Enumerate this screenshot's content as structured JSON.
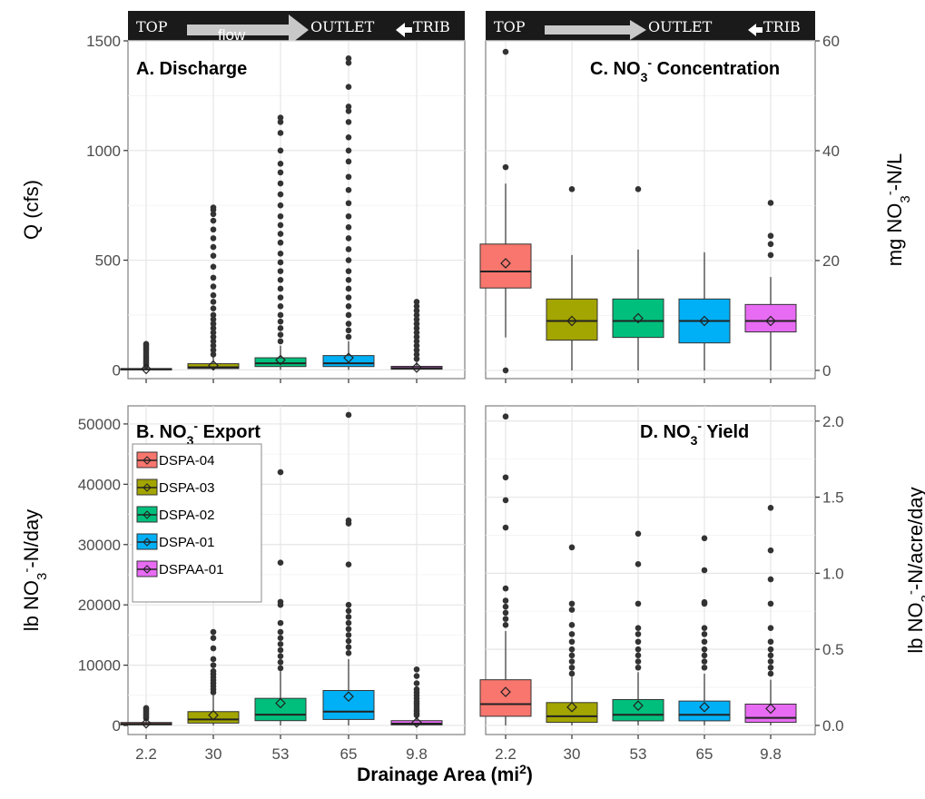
{
  "banner": {
    "top": "TOP",
    "flow": "flow",
    "outlet": "OUTLET",
    "trib": "TRIB"
  },
  "xlabel": {
    "text": "Drainage Area (mi",
    "sup": "2",
    "close": ")"
  },
  "colors": {
    "DSPA-04": "#f8766d",
    "DSPA-03": "#a3a500",
    "DSPA-02": "#00bf7d",
    "DSPA-01": "#00b0f6",
    "DSPAA-01": "#e76bf3"
  },
  "legend": [
    "DSPA-04",
    "DSPA-03",
    "DSPA-02",
    "DSPA-01",
    "DSPAA-01"
  ],
  "chart_data": [
    {
      "id": "A",
      "type": "box",
      "title": "A.   Discharge",
      "ylabel": "Q (cfs)",
      "yaxis_side": "left",
      "ylim": [
        -40,
        1500
      ],
      "yticks": [
        0,
        500,
        1000,
        1500
      ],
      "categories": [
        "2.2",
        "30",
        "53",
        "65",
        "9.8"
      ],
      "grid": true,
      "boxes": [
        {
          "site": "DSPA-04",
          "min": 0,
          "q1": 1,
          "median": 3,
          "q3": 6,
          "max": 14,
          "mean": 4,
          "outliers": [
            20,
            30,
            40,
            50,
            60,
            70,
            80,
            90,
            100,
            110,
            118
          ]
        },
        {
          "site": "DSPA-03",
          "min": 0,
          "q1": 6,
          "median": 12,
          "q3": 28,
          "max": 60,
          "mean": 20,
          "outliers": [
            70,
            90,
            110,
            130,
            150,
            170,
            190,
            210,
            230,
            250,
            280,
            310,
            340,
            380,
            420,
            470,
            520,
            560,
            600,
            640,
            680,
            710,
            730,
            740
          ]
        },
        {
          "site": "DSPA-02",
          "min": 0,
          "q1": 15,
          "median": 30,
          "q3": 55,
          "max": 110,
          "mean": 45,
          "outliers": [
            130,
            160,
            190,
            220,
            250,
            290,
            330,
            370,
            410,
            450,
            490,
            530,
            580,
            620,
            660,
            700,
            750,
            800,
            850,
            900,
            940,
            1000,
            1080,
            1130,
            1150
          ]
        },
        {
          "site": "DSPA-01",
          "min": 0,
          "q1": 15,
          "median": 30,
          "q3": 65,
          "max": 130,
          "mean": 55,
          "outliers": [
            150,
            180,
            210,
            250,
            290,
            330,
            370,
            410,
            450,
            500,
            550,
            600,
            650,
            700,
            760,
            820,
            880,
            950,
            1000,
            1060,
            1130,
            1180,
            1200,
            1290,
            1400,
            1420
          ]
        },
        {
          "site": "DSPAA-01",
          "min": 0,
          "q1": 3,
          "median": 8,
          "q3": 16,
          "max": 40,
          "mean": 10,
          "outliers": [
            50,
            70,
            90,
            110,
            130,
            150,
            170,
            190,
            210,
            230,
            250,
            270,
            290,
            310
          ]
        }
      ]
    },
    {
      "id": "C",
      "type": "box",
      "title": "C.    NO",
      "title_sub": "3",
      "title_sup": "-",
      "title_tail": " Concentration",
      "ylabel": "mg NO",
      "ylabel_sub": "3",
      "ylabel_sup": "-",
      "ylabel_tail": "-N/L",
      "yaxis_side": "right",
      "ylim": [
        -1.5,
        60
      ],
      "yticks": [
        0,
        20,
        40,
        60
      ],
      "categories": [
        "2.2",
        "30",
        "53",
        "65",
        "9.8"
      ],
      "grid": true,
      "boxes": [
        {
          "site": "DSPA-04",
          "min": 6,
          "q1": 15,
          "median": 18,
          "q3": 23,
          "max": 34,
          "mean": 19.5,
          "outliers": [
            0,
            37,
            58
          ]
        },
        {
          "site": "DSPA-03",
          "min": 0,
          "q1": 5.5,
          "median": 9,
          "q3": 13,
          "max": 21,
          "mean": 9,
          "outliers": [
            33
          ]
        },
        {
          "site": "DSPA-02",
          "min": 0,
          "q1": 6,
          "median": 9,
          "q3": 13,
          "max": 22,
          "mean": 9.5,
          "outliers": [
            33
          ]
        },
        {
          "site": "DSPA-01",
          "min": 0,
          "q1": 5,
          "median": 9,
          "q3": 13,
          "max": 21.5,
          "mean": 9,
          "outliers": []
        },
        {
          "site": "DSPAA-01",
          "min": 0,
          "q1": 7,
          "median": 9,
          "q3": 12,
          "max": 17,
          "mean": 9,
          "outliers": [
            21,
            23,
            24.5,
            30.5
          ]
        }
      ]
    },
    {
      "id": "B",
      "type": "box",
      "title": "B.    NO",
      "title_sub": "3",
      "title_sup": "-",
      "title_tail": " Export",
      "ylabel": "lb NO",
      "ylabel_sub": "3",
      "ylabel_sup": "-",
      "ylabel_tail": "-N/day",
      "yaxis_side": "left",
      "ylim": [
        -1500,
        53000
      ],
      "yticks": [
        0,
        10000,
        20000,
        30000,
        40000,
        50000
      ],
      "categories": [
        "2.2",
        "30",
        "53",
        "65",
        "9.8"
      ],
      "grid": true,
      "boxes": [
        {
          "site": "DSPA-04",
          "min": 0,
          "q1": 100,
          "median": 250,
          "q3": 500,
          "max": 1000,
          "mean": 350,
          "outliers": [
            1200,
            1500,
            1800,
            2100,
            2400,
            2700,
            2900
          ]
        },
        {
          "site": "DSPA-03",
          "min": 0,
          "q1": 400,
          "median": 1000,
          "q3": 2300,
          "max": 5000,
          "mean": 1700,
          "outliers": [
            5500,
            6000,
            6500,
            7000,
            7500,
            8000,
            8500,
            9000,
            10000,
            11000,
            12800,
            14500,
            15500,
            22500
          ]
        },
        {
          "site": "DSPA-02",
          "min": 0,
          "q1": 800,
          "median": 1800,
          "q3": 4500,
          "max": 9000,
          "mean": 3700,
          "outliers": [
            9500,
            10500,
            11500,
            12500,
            13500,
            14500,
            15500,
            17000,
            20000,
            20500,
            27000,
            42000
          ]
        },
        {
          "site": "DSPA-01",
          "min": 0,
          "q1": 1000,
          "median": 2300,
          "q3": 5800,
          "max": 11000,
          "mean": 4800,
          "outliers": [
            12000,
            13000,
            14000,
            15000,
            16000,
            17000,
            18000,
            19000,
            20000,
            26700,
            33500,
            34000,
            51500
          ]
        },
        {
          "site": "DSPAA-01",
          "min": 0,
          "q1": 100,
          "median": 300,
          "q3": 800,
          "max": 1500,
          "mean": 500,
          "outliers": [
            1700,
            2000,
            2400,
            2800,
            3200,
            3600,
            4000,
            4500,
            5000,
            5500,
            6000,
            7000,
            8200,
            9300
          ]
        }
      ]
    },
    {
      "id": "D",
      "type": "box",
      "title": "D.    NO",
      "title_sub": "3",
      "title_sup": "-",
      "title_tail": " Yield",
      "ylabel": "lb NO",
      "ylabel_sub": "3",
      "ylabel_sup": "-",
      "ylabel_tail": "-N/acre/day",
      "yaxis_side": "right",
      "ylim": [
        -0.06,
        2.1
      ],
      "yticks": [
        0.0,
        0.5,
        1.0,
        1.5,
        2.0
      ],
      "ytick_labels": [
        "0.0",
        "0.5",
        "1.0",
        "1.5",
        "2.0"
      ],
      "categories": [
        "2.2",
        "30",
        "53",
        "65",
        "9.8"
      ],
      "grid": true,
      "boxes": [
        {
          "site": "DSPA-04",
          "min": 0,
          "q1": 0.06,
          "median": 0.14,
          "q3": 0.3,
          "max": 0.62,
          "mean": 0.22,
          "outliers": [
            0.66,
            0.7,
            0.74,
            0.78,
            0.82,
            0.9,
            1.3,
            1.48,
            1.63,
            2.03
          ]
        },
        {
          "site": "DSPA-03",
          "min": 0,
          "q1": 0.02,
          "median": 0.06,
          "q3": 0.15,
          "max": 0.32,
          "mean": 0.12,
          "outliers": [
            0.34,
            0.38,
            0.42,
            0.46,
            0.5,
            0.55,
            0.6,
            0.66,
            0.76,
            0.8,
            1.17
          ]
        },
        {
          "site": "DSPA-02",
          "min": 0,
          "q1": 0.03,
          "median": 0.07,
          "q3": 0.17,
          "max": 0.35,
          "mean": 0.13,
          "outliers": [
            0.38,
            0.42,
            0.46,
            0.5,
            0.55,
            0.6,
            0.64,
            0.8,
            1.06,
            1.26
          ]
        },
        {
          "site": "DSPA-01",
          "min": 0,
          "q1": 0.03,
          "median": 0.07,
          "q3": 0.16,
          "max": 0.34,
          "mean": 0.12,
          "outliers": [
            0.38,
            0.42,
            0.46,
            0.5,
            0.55,
            0.6,
            0.64,
            0.8,
            0.81,
            1.02,
            1.23
          ]
        },
        {
          "site": "DSPAA-01",
          "min": 0,
          "q1": 0.02,
          "median": 0.05,
          "q3": 0.14,
          "max": 0.3,
          "mean": 0.11,
          "outliers": [
            0.34,
            0.38,
            0.42,
            0.46,
            0.5,
            0.55,
            0.64,
            0.8,
            0.96,
            1.15,
            1.43
          ]
        }
      ]
    }
  ]
}
